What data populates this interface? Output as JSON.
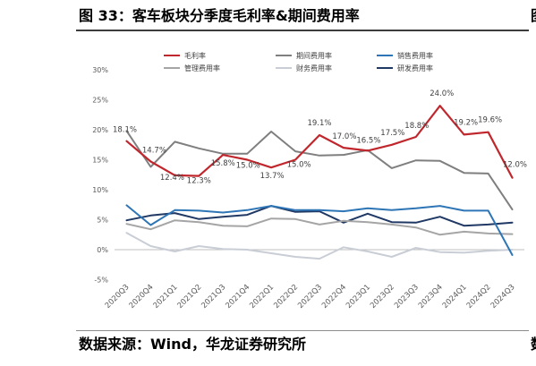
{
  "figure": {
    "caption": "图 33：客车板块分季度毛利率&期间费用率",
    "source": "数据来源：Wind，华龙证券研究所"
  },
  "edge_fragments": {
    "top": "图",
    "bottom": "数"
  },
  "chart_data": {
    "type": "line",
    "categories": [
      "2020Q3",
      "2020Q4",
      "2021Q1",
      "2021Q2",
      "2021Q3",
      "2021Q4",
      "2022Q1",
      "2022Q2",
      "2022Q3",
      "2022Q4",
      "2023Q1",
      "2023Q2",
      "2023Q3",
      "2023Q4",
      "2024Q1",
      "2024Q2",
      "2024Q3"
    ],
    "ylim": [
      -5,
      30
    ],
    "yticks": [
      -5,
      0,
      5,
      10,
      15,
      20,
      25,
      30
    ],
    "ytick_labels": [
      "-5%",
      "0%",
      "5%",
      "10%",
      "15%",
      "20%",
      "25%",
      "30%"
    ],
    "grid": false,
    "legend_position": "top",
    "series": [
      {
        "name": "毛利率",
        "color": "#C0272D",
        "values": [
          18.1,
          14.7,
          12.4,
          12.3,
          15.8,
          15.0,
          13.7,
          15.0,
          19.1,
          17.0,
          16.5,
          17.5,
          18.8,
          24.0,
          19.2,
          19.6,
          12.0
        ],
        "labels": [
          "18.1%",
          "14.7%",
          "12.4%",
          "12.3%",
          "15.8%",
          "15.0%",
          "13.7%",
          "15.0%",
          "19.1%",
          "17.0%",
          "16.5%",
          "17.5%",
          "18.8%",
          "24.0%",
          "19.2%",
          "19.6%",
          "12.0%"
        ]
      },
      {
        "name": "期间费用率",
        "color": "#7F7F7F",
        "values": [
          19.8,
          13.8,
          18.0,
          16.9,
          16.0,
          16.0,
          19.7,
          16.4,
          15.7,
          15.8,
          16.6,
          13.6,
          14.9,
          14.8,
          12.8,
          12.7,
          6.7
        ]
      },
      {
        "name": "销售费用率",
        "color": "#2E75B6",
        "values": [
          7.4,
          4.1,
          6.6,
          6.5,
          6.2,
          6.6,
          7.3,
          6.6,
          6.6,
          6.4,
          6.9,
          6.6,
          6.9,
          7.3,
          6.5,
          6.5,
          -0.9
        ]
      },
      {
        "name": "管理费用率",
        "color": "#A5A5A5",
        "values": [
          4.3,
          3.4,
          4.9,
          4.6,
          4.0,
          3.9,
          5.2,
          5.1,
          4.2,
          4.8,
          4.6,
          4.2,
          3.7,
          2.5,
          3.0,
          2.7,
          2.6
        ]
      },
      {
        "name": "财务费用率",
        "color": "#C9CED6",
        "values": [
          2.8,
          0.6,
          -0.3,
          0.6,
          0.1,
          0.0,
          -0.6,
          -1.2,
          -1.5,
          0.4,
          -0.3,
          -1.2,
          0.3,
          -0.4,
          -0.5,
          -0.2,
          0.0
        ]
      },
      {
        "name": "研发费用率",
        "color": "#1F3864",
        "values": [
          4.9,
          5.7,
          6.1,
          5.1,
          5.5,
          5.8,
          7.3,
          6.3,
          6.4,
          4.5,
          6.0,
          4.6,
          4.5,
          5.5,
          4.0,
          4.2,
          4.5
        ]
      }
    ]
  }
}
